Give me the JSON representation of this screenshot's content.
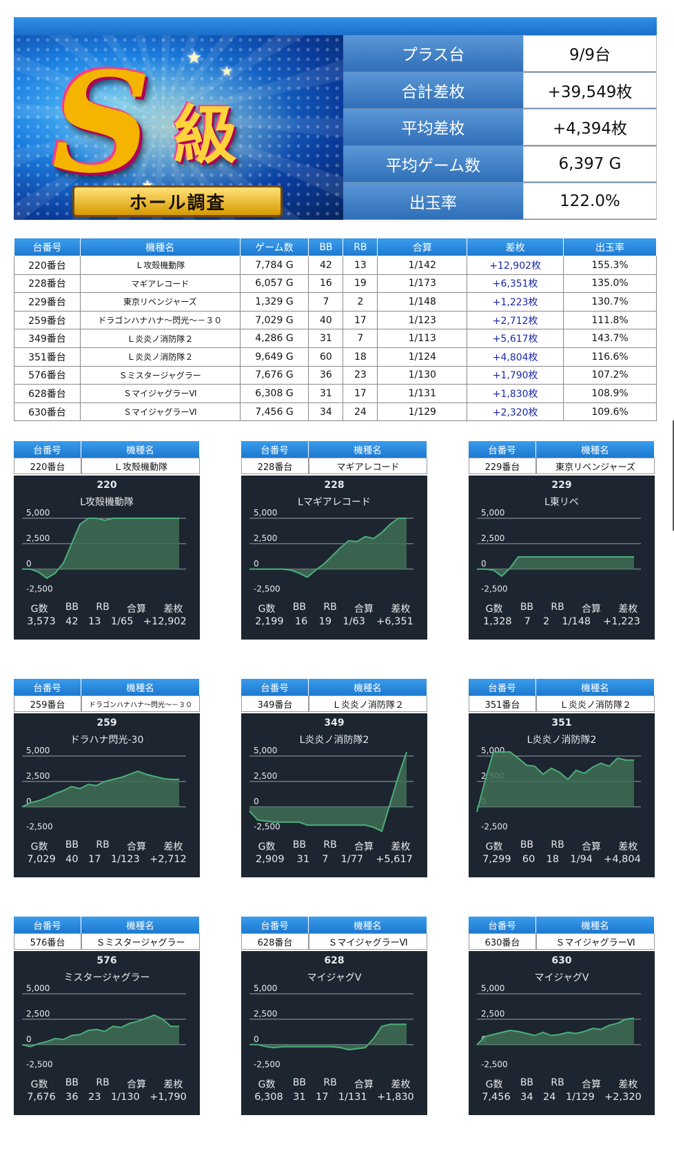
{
  "hero": {
    "badge": "S級",
    "subtitle": "ホール調査"
  },
  "summary": [
    {
      "label": "プラス台",
      "value": "9/9台"
    },
    {
      "label": "合計差枚",
      "value": "+39,549枚"
    },
    {
      "label": "平均差枚",
      "value": "+4,394枚"
    },
    {
      "label": "平均ゲーム数",
      "value": "6,397 G"
    },
    {
      "label": "出玉率",
      "value": "122.0%"
    }
  ],
  "table": {
    "headers": [
      "台番号",
      "機種名",
      "ゲーム数",
      "BB",
      "RB",
      "合算",
      "差枚",
      "出玉率"
    ],
    "rows": [
      [
        "220番台",
        "Ｌ攻殻機動隊",
        "7,784 G",
        "42",
        "13",
        "1/142",
        "+12,902枚",
        "155.3%"
      ],
      [
        "228番台",
        "マギアレコード",
        "6,057 G",
        "16",
        "19",
        "1/173",
        "+6,351枚",
        "135.0%"
      ],
      [
        "229番台",
        "東京リベンジャーズ",
        "1,329 G",
        "7",
        "2",
        "1/148",
        "+1,223枚",
        "130.7%"
      ],
      [
        "259番台",
        "ドラゴンハナハナ～閃光～－３０",
        "7,029 G",
        "40",
        "17",
        "1/123",
        "+2,712枚",
        "111.8%"
      ],
      [
        "349番台",
        "Ｌ炎炎ノ消防隊２",
        "4,286 G",
        "31",
        "7",
        "1/113",
        "+5,617枚",
        "143.7%"
      ],
      [
        "351番台",
        "Ｌ炎炎ノ消防隊２",
        "9,649 G",
        "60",
        "18",
        "1/124",
        "+4,804枚",
        "116.6%"
      ],
      [
        "576番台",
        "Ｓミスタージャグラー",
        "7,676 G",
        "36",
        "23",
        "1/130",
        "+1,790枚",
        "107.2%"
      ],
      [
        "628番台",
        "ＳマイジャグラーⅥ",
        "6,308 G",
        "31",
        "17",
        "1/131",
        "+1,830枚",
        "108.9%"
      ],
      [
        "630番台",
        "ＳマイジャグラーⅥ",
        "7,456 G",
        "34",
        "24",
        "1/129",
        "+2,320枚",
        "109.6%"
      ]
    ]
  },
  "card_header": {
    "unit": "台番号",
    "model": "機種名"
  },
  "stat_headers": [
    "G数",
    "BB",
    "RB",
    "合算",
    "差枚"
  ],
  "y_ticks": [
    "5,000",
    "2,500",
    "0",
    "-2,500"
  ],
  "cards": [
    {
      "unit": "220番台",
      "model": "Ｌ攻殻機動隊",
      "chart_id": "220",
      "chart_name": "L攻殻機動隊",
      "stats": [
        "3,573",
        "42",
        "13",
        "1/65",
        "+12,902"
      ]
    },
    {
      "unit": "228番台",
      "model": "マギアレコード",
      "chart_id": "228",
      "chart_name": "Lマギアレコード",
      "stats": [
        "2,199",
        "16",
        "19",
        "1/63",
        "+6,351"
      ]
    },
    {
      "unit": "229番台",
      "model": "東京リベンジャーズ",
      "chart_id": "229",
      "chart_name": "L東リベ",
      "stats": [
        "1,328",
        "7",
        "2",
        "1/148",
        "+1,223"
      ]
    },
    {
      "unit": "259番台",
      "model": "ドラゴンハナハナ～閃光～－３０",
      "chart_id": "259",
      "chart_name": "ドラハナ閃光-30",
      "stats": [
        "7,029",
        "40",
        "17",
        "1/123",
        "+2,712"
      ]
    },
    {
      "unit": "349番台",
      "model": "Ｌ炎炎ノ消防隊２",
      "chart_id": "349",
      "chart_name": "L炎炎ノ消防隊2",
      "stats": [
        "2,909",
        "31",
        "7",
        "1/77",
        "+5,617"
      ]
    },
    {
      "unit": "351番台",
      "model": "Ｌ炎炎ノ消防隊２",
      "chart_id": "351",
      "chart_name": "L炎炎ノ消防隊2",
      "stats": [
        "7,299",
        "60",
        "18",
        "1/94",
        "+4,804"
      ]
    },
    {
      "unit": "576番台",
      "model": "Ｓミスタージャグラー",
      "chart_id": "576",
      "chart_name": "ミスタージャグラー",
      "stats": [
        "7,676",
        "36",
        "23",
        "1/130",
        "+1,790"
      ]
    },
    {
      "unit": "628番台",
      "model": "ＳマイジャグラーⅥ",
      "chart_id": "628",
      "chart_name": "マイジャグV",
      "stats": [
        "6,308",
        "31",
        "17",
        "1/131",
        "+1,830"
      ]
    },
    {
      "unit": "630番台",
      "model": "ＳマイジャグラーⅥ",
      "chart_id": "630",
      "chart_name": "マイジャグV",
      "stats": [
        "7,456",
        "34",
        "24",
        "1/129",
        "+2,320"
      ]
    }
  ],
  "chart_data": [
    {
      "type": "area",
      "title": "L攻殻機動隊",
      "ylim": [
        -3000,
        5000
      ],
      "y": [
        0,
        0,
        -300,
        -900,
        -400,
        600,
        2500,
        4400,
        5000,
        5000,
        4800,
        5000,
        5000,
        5000,
        5000,
        5000,
        5000,
        5000,
        5000,
        5000
      ]
    },
    {
      "type": "area",
      "title": "Lマギアレコード",
      "ylim": [
        -3000,
        5000
      ],
      "y": [
        0,
        0,
        0,
        0,
        0,
        -100,
        -400,
        -800,
        -100,
        500,
        1300,
        2100,
        2800,
        2700,
        3200,
        3000,
        3600,
        4400,
        5000,
        5000
      ]
    },
    {
      "type": "area",
      "title": "L東リベ",
      "ylim": [
        -3000,
        5000
      ],
      "y": [
        0,
        0,
        -100,
        -700,
        100,
        1200,
        1200,
        1200,
        1200,
        1200,
        1200,
        1200,
        1200,
        1200,
        1200,
        1200,
        1200,
        1200,
        1200,
        1200
      ]
    },
    {
      "type": "area",
      "title": "ドラハナ閃光-30",
      "ylim": [
        -3000,
        5000
      ],
      "y": [
        0,
        400,
        600,
        900,
        1300,
        1600,
        2000,
        1800,
        2200,
        2100,
        2500,
        2700,
        2900,
        3200,
        3500,
        3200,
        3000,
        2800,
        2700,
        2700
      ]
    },
    {
      "type": "area",
      "title": "L炎炎ノ消防隊2",
      "ylim": [
        -3000,
        5000
      ],
      "y": [
        -400,
        -1300,
        -1400,
        -1500,
        -1500,
        -1500,
        -1500,
        -1800,
        -1800,
        -1800,
        -1800,
        -1800,
        -1800,
        -1800,
        -1800,
        -2000,
        -2400,
        300,
        3000,
        5400
      ]
    },
    {
      "type": "area",
      "title": "L炎炎ノ消防隊2",
      "ylim": [
        -3000,
        5000
      ],
      "y": [
        -500,
        2600,
        5400,
        5400,
        5400,
        4800,
        4100,
        4000,
        3200,
        3800,
        3400,
        2700,
        3600,
        3300,
        3900,
        4300,
        4000,
        4800,
        4600,
        4600
      ]
    },
    {
      "type": "area",
      "title": "ミスタージャグラー",
      "ylim": [
        -3000,
        5000
      ],
      "y": [
        0,
        -200,
        100,
        300,
        600,
        500,
        900,
        1000,
        1400,
        1500,
        1300,
        1800,
        1700,
        2100,
        2300,
        2600,
        2900,
        2500,
        1800,
        1800
      ]
    },
    {
      "type": "area",
      "title": "マイジャグV",
      "ylim": [
        -3000,
        5000
      ],
      "y": [
        0,
        0,
        -200,
        -300,
        -200,
        -200,
        -200,
        -200,
        -200,
        -200,
        -200,
        -300,
        -500,
        -400,
        -300,
        600,
        1800,
        2000,
        2000,
        2000
      ]
    },
    {
      "type": "area",
      "title": "マイジャグV",
      "ylim": [
        -3000,
        5000
      ],
      "y": [
        0,
        800,
        1000,
        1200,
        1400,
        1300,
        1100,
        900,
        1200,
        900,
        1000,
        1200,
        1100,
        1300,
        1600,
        1500,
        1900,
        2100,
        2500,
        2600
      ]
    }
  ],
  "colors": {
    "header_blue": "#1d79cf",
    "diff_blue": "#1a28a8",
    "chart_bg": "#1d2530",
    "chart_line": "#4caf7a",
    "chart_fill": "#3f6e55"
  }
}
